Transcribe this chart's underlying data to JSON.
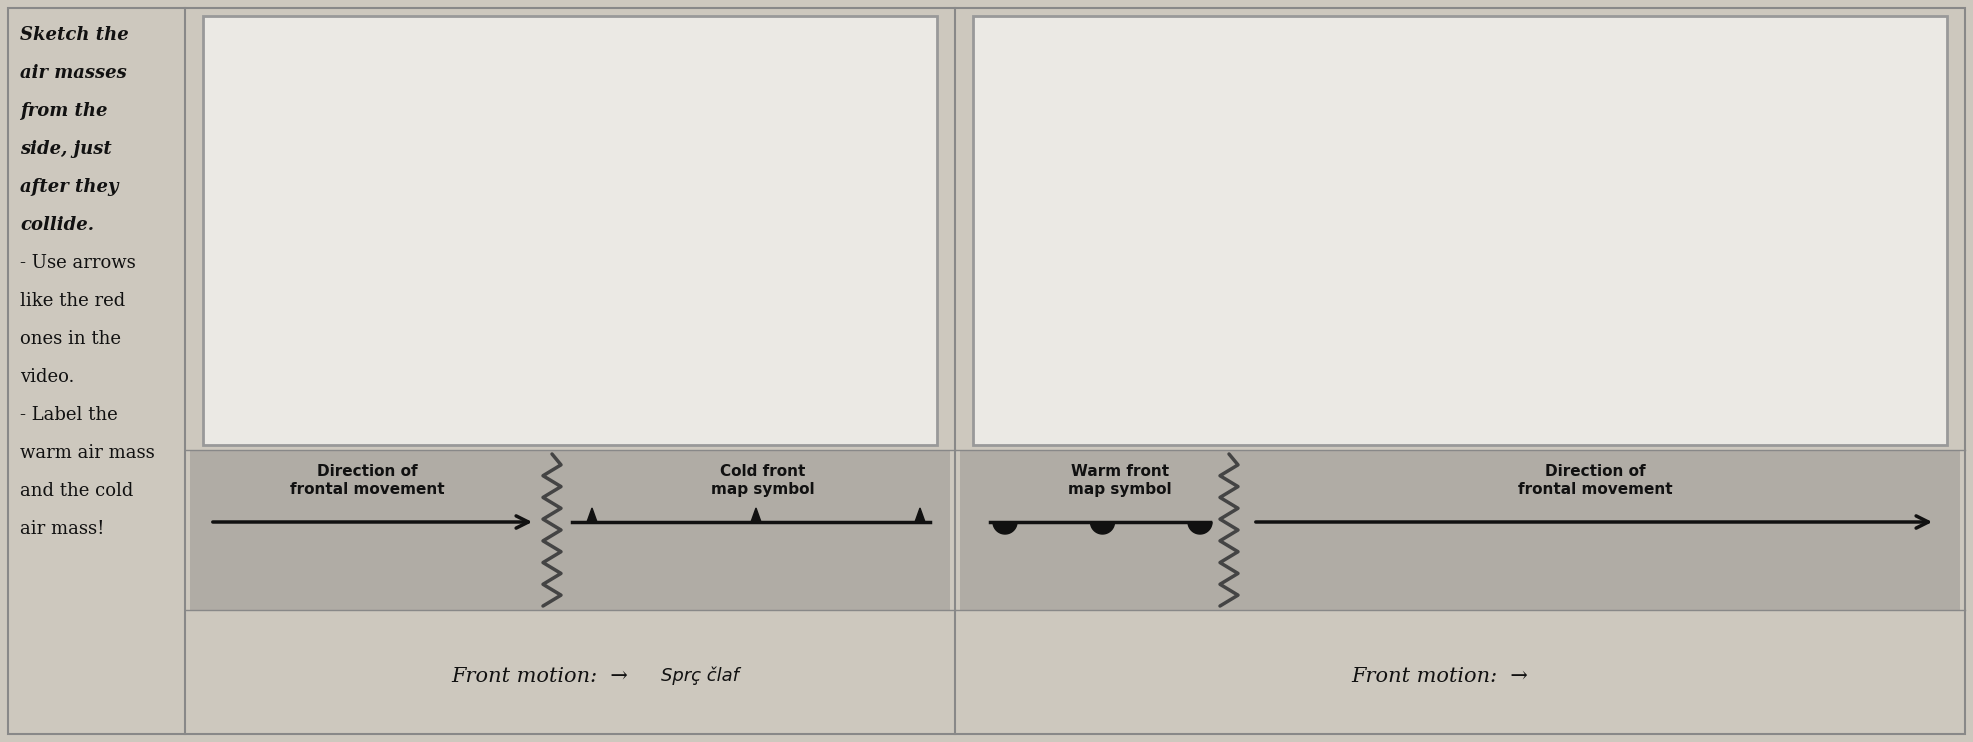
{
  "bg_color": "#cdc8be",
  "inner_box_color": "#ebe9e4",
  "sym_band_color": "#b0aca5",
  "border_color": "#888888",
  "arrow_color": "#111111",
  "label_color": "#111111",
  "left_text_lines": [
    "Sketch the",
    "air masses",
    "from the",
    "side, just",
    "after they",
    "collide.",
    "- Use arrows",
    "like the red",
    "ones in the",
    "video.",
    "- Label the",
    "warm air mass",
    "and the cold",
    "air mass!"
  ],
  "bold_italic_count": 6,
  "cold_dir_line1": "Direction of",
  "cold_dir_line2": "frontal movement",
  "cold_sym_line1": "Cold front",
  "cold_sym_line2": "map symbol",
  "warm_sym_line1": "Warm front",
  "warm_sym_line2": "map symbol",
  "warm_dir_line1": "Direction of",
  "warm_dir_line2": "frontal movement",
  "front_motion_left": "Front motion:",
  "front_motion_right": "Front motion:",
  "fig_width": 19.73,
  "fig_height": 7.42,
  "dpi": 100
}
